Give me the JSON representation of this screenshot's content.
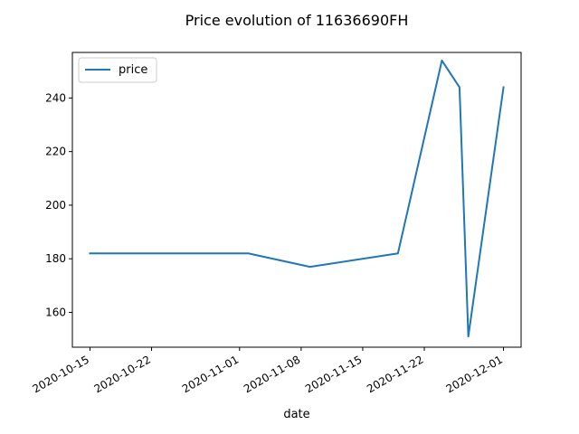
{
  "chart_data": {
    "type": "line",
    "title": "Price evolution of 11636690FH",
    "xlabel": "date",
    "ylabel": "",
    "legend": {
      "placement": "top-left",
      "entries": [
        "price"
      ]
    },
    "grid": false,
    "xlim": [
      "2020-10-13",
      "2020-12-03"
    ],
    "ylim": [
      147,
      257
    ],
    "x_ticks": [
      "2020-10-15",
      "2020-10-22",
      "2020-11-01",
      "2020-11-08",
      "2020-11-15",
      "2020-11-22",
      "2020-12-01"
    ],
    "y_ticks": [
      160,
      180,
      200,
      220,
      240
    ],
    "series": [
      {
        "name": "price",
        "color": "#1f77b4",
        "x": [
          "2020-10-15",
          "2020-11-02",
          "2020-11-09",
          "2020-11-19",
          "2020-11-24",
          "2020-11-26",
          "2020-11-27",
          "2020-12-01"
        ],
        "y": [
          182,
          182,
          177,
          182,
          254,
          244,
          151,
          244
        ]
      }
    ]
  }
}
